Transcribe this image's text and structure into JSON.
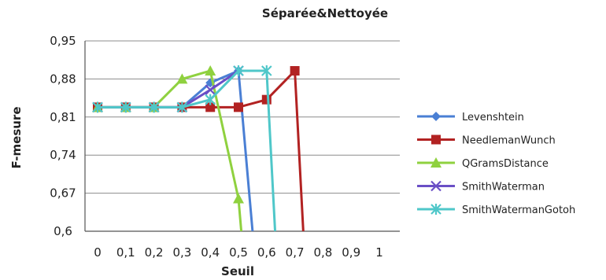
{
  "chart_data": {
    "type": "line",
    "title": "Séparée&Nettoyée",
    "xlabel": "Seuil",
    "ylabel": "F-mesure",
    "x_ticks": [
      "0",
      "0,1",
      "0,2",
      "0,3",
      "0,4",
      "0,5",
      "0,6",
      "0,7",
      "0,8",
      "0,9",
      "1"
    ],
    "y_ticks": [
      "0,95",
      "0,88",
      "0,81",
      "0,74",
      "0,67",
      "0,6"
    ],
    "ylim": [
      0.6,
      0.95
    ],
    "grid": "horizontal",
    "legend_position": "right",
    "series": [
      {
        "name": "Levenshtein",
        "color": "#4a7fd4",
        "marker": "diamond",
        "x": [
          0,
          0.1,
          0.2,
          0.3,
          0.4,
          0.5,
          0.55
        ],
        "y": [
          0.828,
          0.828,
          0.828,
          0.828,
          0.873,
          0.895,
          0.6
        ]
      },
      {
        "name": "NeedlemanWunch",
        "color": "#b22222",
        "marker": "square",
        "x": [
          0,
          0.1,
          0.2,
          0.3,
          0.4,
          0.5,
          0.6,
          0.7,
          0.73
        ],
        "y": [
          0.828,
          0.828,
          0.828,
          0.828,
          0.828,
          0.828,
          0.842,
          0.895,
          0.6
        ]
      },
      {
        "name": "QGramsDistance",
        "color": "#8fd13f",
        "marker": "triangle",
        "x": [
          0,
          0.1,
          0.2,
          0.3,
          0.4,
          0.5,
          0.51
        ],
        "y": [
          0.828,
          0.828,
          0.828,
          0.88,
          0.895,
          0.66,
          0.6
        ]
      },
      {
        "name": "SmithWaterman",
        "color": "#6a4fc6",
        "marker": "x",
        "x": [
          0,
          0.1,
          0.2,
          0.3,
          0.4,
          0.5
        ],
        "y": [
          0.828,
          0.828,
          0.828,
          0.828,
          0.86,
          0.895
        ]
      },
      {
        "name": "SmithWatermanGotoh",
        "color": "#4fc7c9",
        "marker": "star",
        "x": [
          0,
          0.1,
          0.2,
          0.3,
          0.4,
          0.5,
          0.6,
          0.63
        ],
        "y": [
          0.828,
          0.828,
          0.828,
          0.828,
          0.842,
          0.895,
          0.895,
          0.6
        ]
      }
    ]
  }
}
